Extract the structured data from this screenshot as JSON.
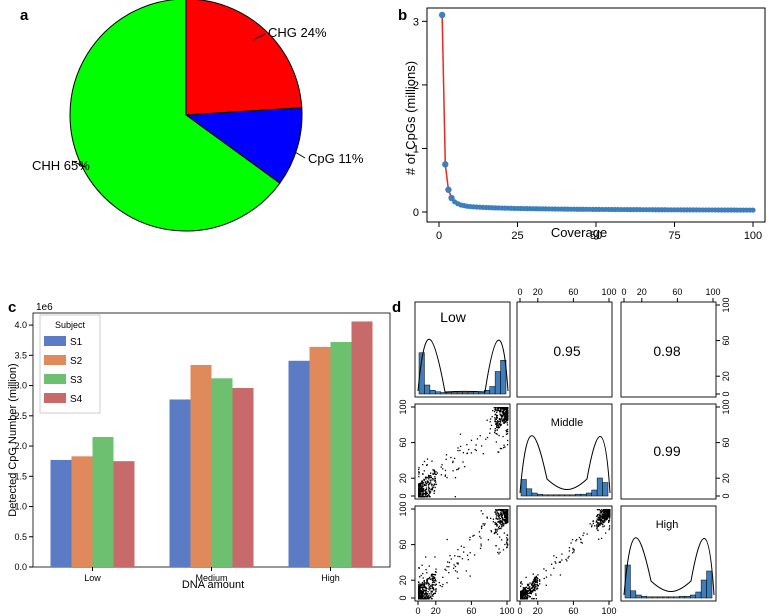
{
  "chart_data": [
    {
      "panel": "a",
      "type": "pie",
      "categories": [
        "CHG",
        "CpG",
        "CHH"
      ],
      "values": [
        24,
        11,
        65
      ],
      "labels": [
        "CHG 24%",
        "CpG 11%",
        "CHH 65%"
      ],
      "colors": [
        "#ff0000",
        "#0000ff",
        "#00ff00"
      ]
    },
    {
      "panel": "b",
      "type": "line",
      "xlabel": "Coverage",
      "ylabel": "# of CpGs (millions)",
      "xlim": [
        0,
        100
      ],
      "ylim": [
        0,
        3.2
      ],
      "xticks": [
        "0",
        "25",
        "50",
        "75",
        "100"
      ],
      "yticks": [
        "0",
        "1",
        "2",
        "3"
      ],
      "line_color": "#e8291c",
      "point_color": "#3d7ebd",
      "x": [
        1,
        2,
        3,
        4,
        5,
        6,
        7,
        8,
        9,
        10,
        12,
        15,
        20,
        25,
        30,
        40,
        50,
        60,
        70,
        80,
        90,
        100
      ],
      "y": [
        3.1,
        0.75,
        0.35,
        0.22,
        0.16,
        0.13,
        0.11,
        0.1,
        0.09,
        0.085,
        0.08,
        0.075,
        0.07,
        0.065,
        0.06,
        0.055,
        0.05,
        0.045,
        0.04,
        0.035,
        0.03,
        0.028
      ]
    },
    {
      "panel": "c",
      "type": "bar",
      "categories": [
        "Low",
        "Medium",
        "High"
      ],
      "series": [
        {
          "name": "S1",
          "values": [
            1.77,
            2.77,
            3.41
          ],
          "color": "#5b7bc4"
        },
        {
          "name": "S2",
          "values": [
            1.83,
            3.34,
            3.64
          ],
          "color": "#e08a5c"
        },
        {
          "name": "S3",
          "values": [
            2.15,
            3.12,
            3.72
          ],
          "color": "#6cc070"
        },
        {
          "name": "S4",
          "values": [
            1.75,
            2.96,
            4.06
          ],
          "color": "#c96a6a"
        }
      ],
      "scale_label": "1e6",
      "xlabel": "DNA amount",
      "ylabel": "Detected CpG Number (million)",
      "ylim": [
        0,
        4.2
      ],
      "yticks": [
        "0.0",
        "0.5",
        "1.0",
        "1.5",
        "2.0",
        "2.5",
        "3.0",
        "3.5",
        "4.0"
      ],
      "legend_title": "Subject"
    },
    {
      "panel": "d",
      "type": "scatter",
      "variables": [
        "Low",
        "Middle",
        "High"
      ],
      "correlations": [
        {
          "pair": "Low-Middle",
          "value": "0.95"
        },
        {
          "pair": "Low-High",
          "value": "0.98"
        },
        {
          "pair": "Middle-High",
          "value": "0.99"
        }
      ],
      "axis_ticks": [
        "0",
        "20",
        "60",
        "100"
      ],
      "range": [
        0,
        100
      ],
      "hist_color": "#3d7ebd"
    }
  ],
  "panel_labels": {
    "a": "a",
    "b": "b",
    "c": "c",
    "d": "d"
  }
}
